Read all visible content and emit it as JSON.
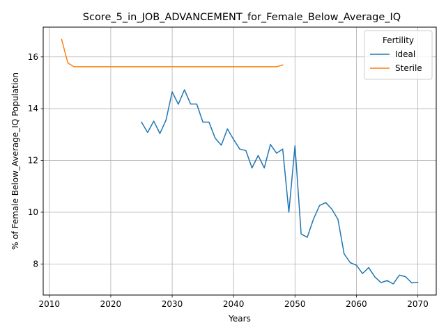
{
  "chart_data": {
    "type": "line",
    "title": "Score_5_in_JOB_ADVANCEMENT_for_Female_Below_Average_IQ",
    "xlabel": "Years",
    "ylabel": "% of Female Below_Average_IQ Population",
    "xlim": [
      2009,
      2073
    ],
    "ylim": [
      6.8,
      17.15
    ],
    "xticks": [
      2010,
      2020,
      2030,
      2040,
      2050,
      2060,
      2070
    ],
    "yticks": [
      8,
      10,
      12,
      14,
      16
    ],
    "grid": true,
    "legend": {
      "title": "Fertility",
      "position": "top-right"
    },
    "series": [
      {
        "name": "Ideal",
        "color": "#1f77b4",
        "x": [
          2025,
          2026,
          2027,
          2028,
          2029,
          2030,
          2031,
          2032,
          2033,
          2034,
          2035,
          2036,
          2037,
          2038,
          2039,
          2040,
          2041,
          2042,
          2043,
          2044,
          2045,
          2046,
          2047,
          2048,
          2049,
          2050,
          2051,
          2052,
          2053,
          2054,
          2055,
          2056,
          2057,
          2058,
          2059,
          2060,
          2061,
          2062,
          2063,
          2064,
          2065,
          2066,
          2067,
          2068,
          2069,
          2070
        ],
        "y": [
          13.48,
          13.08,
          13.52,
          13.04,
          13.56,
          14.65,
          14.17,
          14.73,
          14.18,
          14.18,
          13.48,
          13.48,
          12.86,
          12.59,
          13.22,
          12.81,
          12.44,
          12.38,
          11.71,
          12.19,
          11.71,
          12.62,
          12.28,
          12.44,
          10.0,
          12.57,
          9.16,
          9.03,
          9.73,
          10.26,
          10.37,
          10.12,
          9.72,
          8.39,
          8.05,
          7.95,
          7.63,
          7.86,
          7.5,
          7.28,
          7.36,
          7.23,
          7.57,
          7.51,
          7.27,
          7.29
        ]
      },
      {
        "name": "Sterile",
        "color": "#ff7f0e",
        "x": [
          2012,
          2013,
          2014,
          2015,
          2016,
          2017,
          2018,
          2019,
          2020,
          2021,
          2022,
          2023,
          2024,
          2025,
          2026,
          2027,
          2028,
          2029,
          2030,
          2031,
          2032,
          2033,
          2034,
          2035,
          2036,
          2037,
          2038,
          2039,
          2040,
          2041,
          2042,
          2043,
          2044,
          2045,
          2046,
          2047,
          2048
        ],
        "y": [
          16.68,
          15.77,
          15.62,
          15.62,
          15.62,
          15.62,
          15.62,
          15.62,
          15.62,
          15.62,
          15.62,
          15.62,
          15.62,
          15.62,
          15.62,
          15.62,
          15.62,
          15.62,
          15.62,
          15.62,
          15.62,
          15.62,
          15.62,
          15.62,
          15.62,
          15.62,
          15.62,
          15.62,
          15.62,
          15.62,
          15.62,
          15.62,
          15.62,
          15.62,
          15.62,
          15.62,
          15.69
        ]
      }
    ]
  }
}
